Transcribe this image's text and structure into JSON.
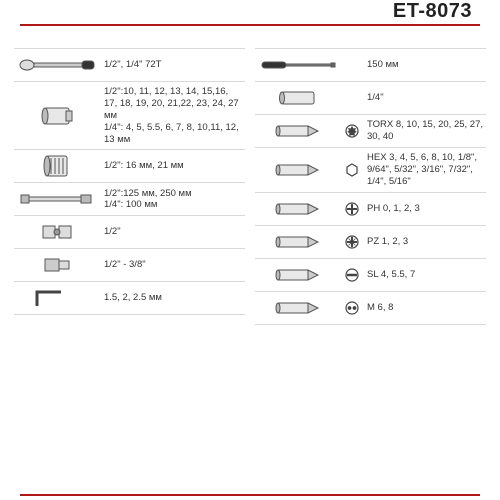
{
  "product_code": "ET-8073",
  "accent_color": "#b01818",
  "divider_color": "#d9d9d9",
  "text_color": "#333333",
  "font_size_label": 9.5,
  "font_size_title": 20,
  "left_column": [
    {
      "icon": "ratchet",
      "label": "1/2\", 1/4\" 72T"
    },
    {
      "icon": "socket",
      "label": "1/2\":10, 11, 12, 13, 14, 15,16, 17, 18, 19, 20, 21,22, 23, 24, 27 мм\n1/4\": 4, 5, 5.5, 6, 7, 8, 10,11, 12, 13 мм"
    },
    {
      "icon": "sparkplug",
      "label": "1/2\": 16 мм, 21 мм"
    },
    {
      "icon": "extension",
      "label": "1/2\":125 мм, 250 мм\n1/4\": 100 мм"
    },
    {
      "icon": "ujoint",
      "label": "1/2\""
    },
    {
      "icon": "adapter",
      "label": "1/2\" - 3/8\""
    },
    {
      "icon": "hexkey",
      "label": "1.5, 2, 2.5 мм"
    }
  ],
  "right_column": [
    {
      "icon": "screwdriver",
      "symbol": "",
      "label": "150 мм"
    },
    {
      "icon": "deepsocket",
      "symbol": "",
      "label": "1/4\""
    },
    {
      "icon": "bit",
      "symbol": "torx",
      "label": "TORX 8, 10, 15, 20, 25, 27, 30, 40"
    },
    {
      "icon": "bit",
      "symbol": "hex",
      "label": "HEX 3, 4, 5, 6, 8, 10, 1/8\", 9/64\", 5/32\", 3/16\", 7/32\", 1/4\", 5/16\""
    },
    {
      "icon": "bit",
      "symbol": "phillips",
      "label": "PH 0, 1, 2, 3"
    },
    {
      "icon": "bit",
      "symbol": "pozi",
      "label": "PZ 1, 2, 3"
    },
    {
      "icon": "bit",
      "symbol": "slot",
      "label": "SL 4, 5.5, 7"
    },
    {
      "icon": "bit",
      "symbol": "spanner",
      "label": "M 6, 8"
    }
  ]
}
